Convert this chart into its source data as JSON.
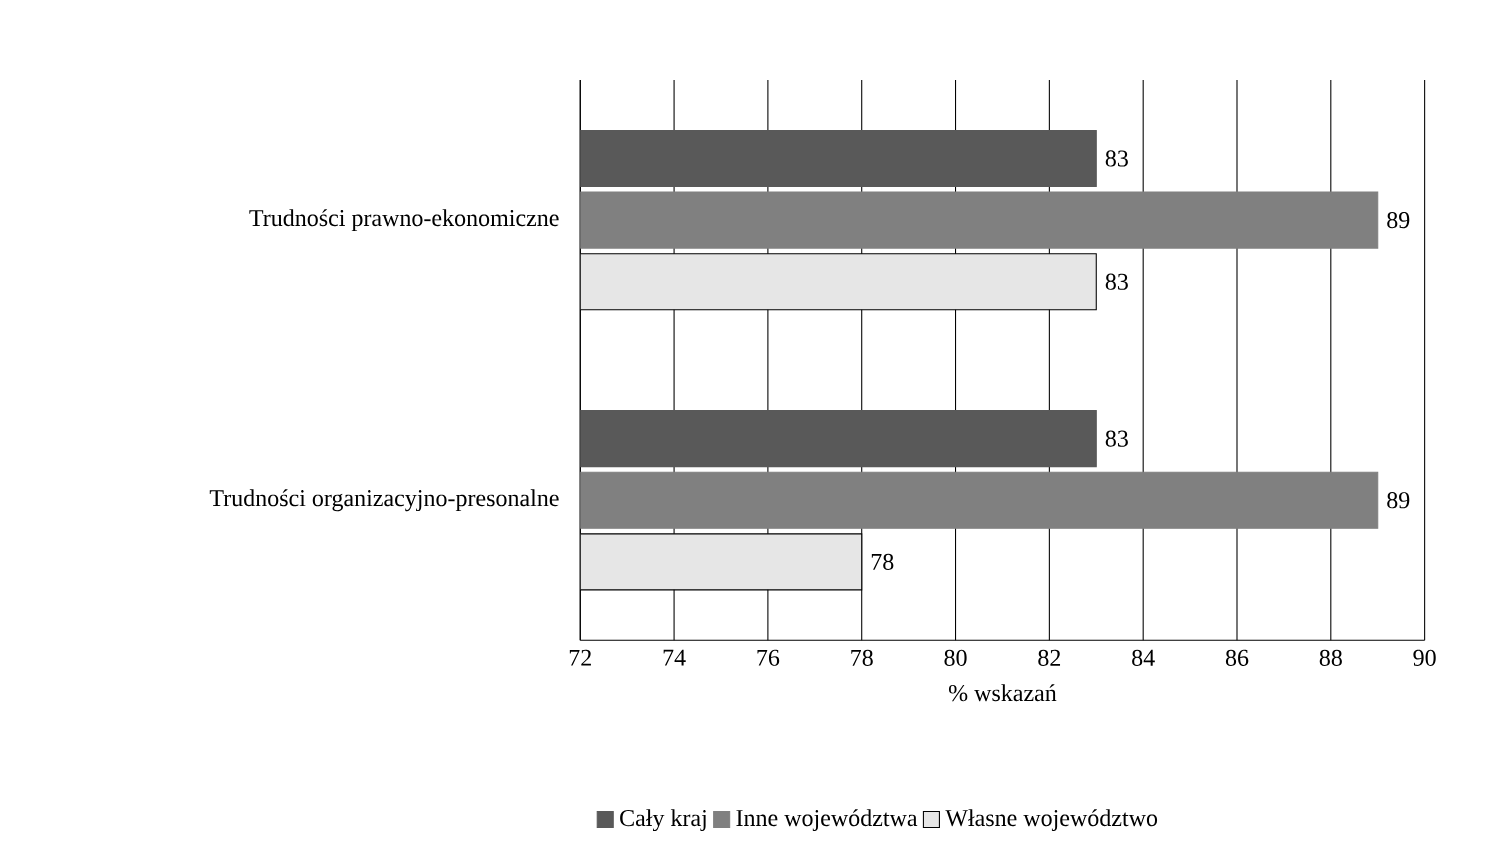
{
  "chart_data": {
    "type": "bar",
    "orientation": "horizontal",
    "categories": [
      "Trudności prawno-ekonomiczne",
      "Trudności organizacyjno-presonalne"
    ],
    "series": [
      {
        "name": "Cały kraj",
        "color": "#595959",
        "values": [
          83,
          83
        ]
      },
      {
        "name": "Inne województwa",
        "color": "#808080",
        "values": [
          89,
          89
        ]
      },
      {
        "name": "Własne województwo",
        "color": "#e6e6e6",
        "values": [
          83,
          78
        ]
      }
    ],
    "xlim": [
      72,
      90
    ],
    "xticks": [
      72,
      74,
      76,
      78,
      80,
      82,
      84,
      86,
      88,
      90
    ],
    "xlabel": "% wskazań",
    "grid": "x",
    "legend": "bottom",
    "data_labels": true
  }
}
